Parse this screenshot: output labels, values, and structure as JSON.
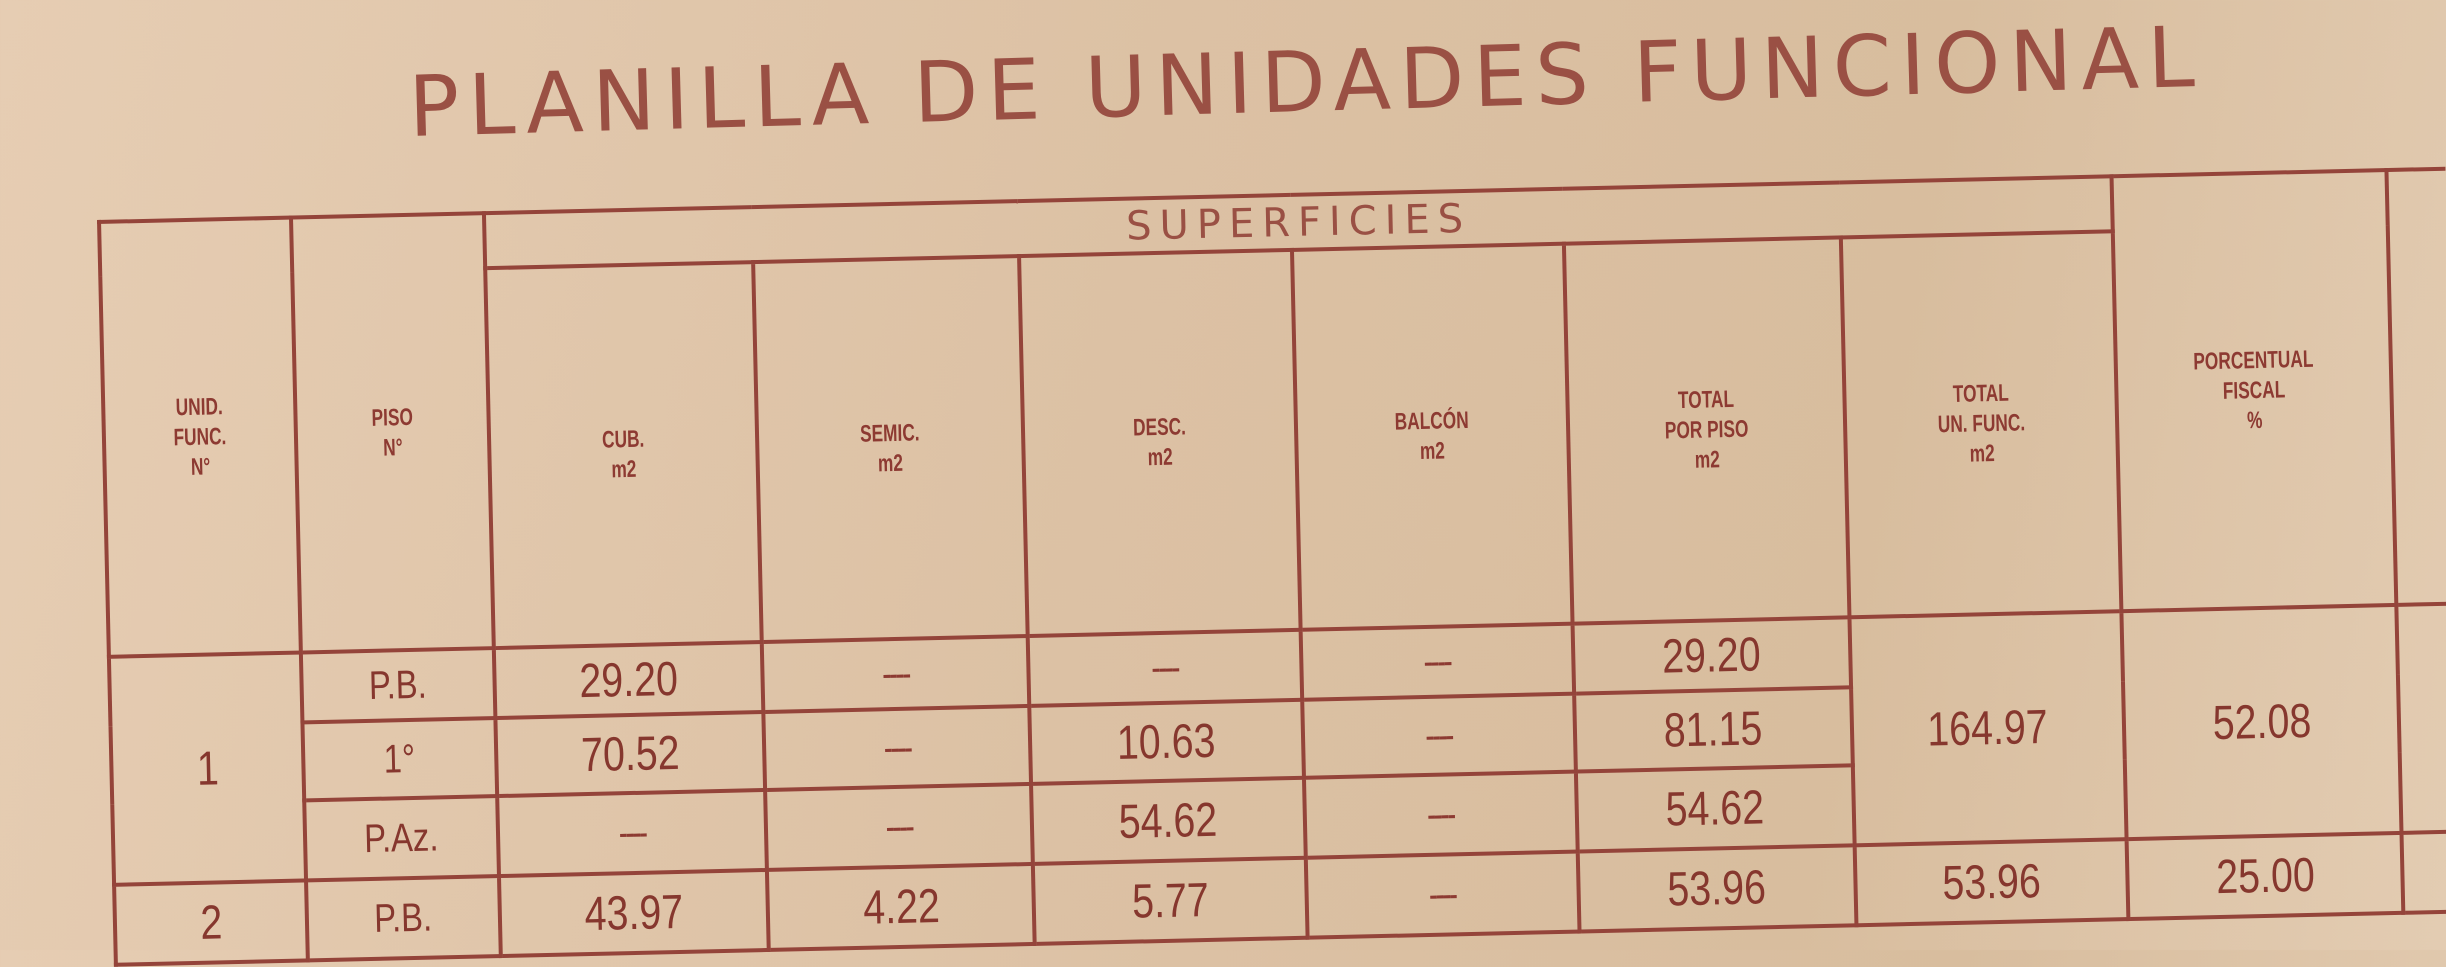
{
  "title": "PLANILLA DE UNIDADES FUNCIONAL",
  "group_header": "SUPERFICIES",
  "headers": {
    "unid": [
      "UNID.",
      "FUNC.",
      "N°"
    ],
    "piso": [
      "PISO",
      "N°"
    ],
    "cub": [
      "CUB.",
      "m2"
    ],
    "semic": [
      "SEMIC.",
      "m2"
    ],
    "desc": [
      "DESC.",
      "m2"
    ],
    "balcon": [
      "BALCÓN",
      "m2"
    ],
    "total_piso": [
      "TOTAL",
      "POR PISO",
      "m2"
    ],
    "total_uf": [
      "TOTAL",
      "UN. FUNC.",
      "m2"
    ],
    "porcentual": [
      "PORCENTUAL",
      "FISCAL",
      "%"
    ]
  },
  "units": [
    {
      "unid": "1",
      "total_uf": "164.97",
      "porcentual": "52.08",
      "rows": [
        {
          "piso": "P.B.",
          "cub": "29.20",
          "semic": "----",
          "desc": "----",
          "balcon": "----",
          "total_piso": "29.20"
        },
        {
          "piso": "1°",
          "cub": "70.52",
          "semic": "----",
          "desc": "10.63",
          "balcon": "----",
          "total_piso": "81.15"
        },
        {
          "piso": "P.Az.",
          "cub": "----",
          "semic": "----",
          "desc": "54.62",
          "balcon": "----",
          "total_piso": "54.62"
        }
      ]
    },
    {
      "unid": "2",
      "total_uf": "53.96",
      "porcentual": "25.00",
      "rows": [
        {
          "piso": "P.B.",
          "cub": "43.97",
          "semic": "4.22",
          "desc": "5.77",
          "balcon": "----",
          "total_piso": "53.96"
        }
      ]
    }
  ]
}
